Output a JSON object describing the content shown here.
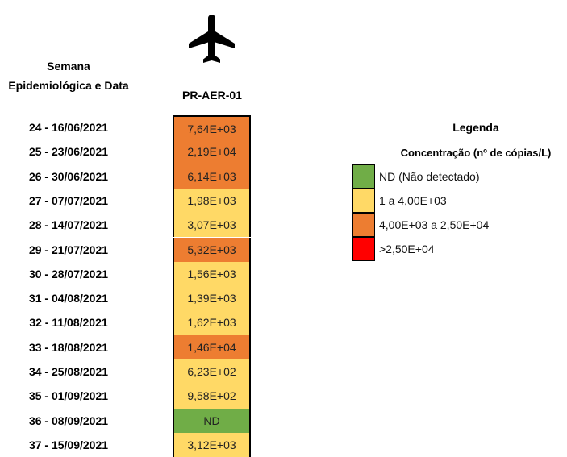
{
  "header": {
    "row_label": "Semana Epidemiológica e Data",
    "column_label": "PR-AER-01"
  },
  "table": {
    "rows": [
      {
        "week": "24 - 16/06/2021",
        "value": "7,64E+03",
        "color": "#ed7d31"
      },
      {
        "week": "25 - 23/06/2021",
        "value": "2,19E+04",
        "color": "#ed7d31"
      },
      {
        "week": "26 - 30/06/2021",
        "value": "6,14E+03",
        "color": "#ed7d31"
      },
      {
        "week": "27 - 07/07/2021",
        "value": "1,98E+03",
        "color": "#ffd966"
      },
      {
        "week": "28 - 14/07/2021",
        "value": "3,07E+03",
        "color": "#ffd966"
      },
      {
        "week": "29 - 21/07/2021",
        "value": "5,32E+03",
        "color": "#ed7d31"
      },
      {
        "week": "30 - 28/07/2021",
        "value": "1,56E+03",
        "color": "#ffd966"
      },
      {
        "week": "31 - 04/08/2021",
        "value": "1,39E+03",
        "color": "#ffd966"
      },
      {
        "week": "32 - 11/08/2021",
        "value": "1,62E+03",
        "color": "#ffd966"
      },
      {
        "week": "33 - 18/08/2021",
        "value": "1,46E+04",
        "color": "#ed7d31"
      },
      {
        "week": "34 - 25/08/2021",
        "value": "6,23E+02",
        "color": "#ffd966"
      },
      {
        "week": "35 - 01/09/2021",
        "value": "9,58E+02",
        "color": "#ffd966"
      },
      {
        "week": "36 - 08/09/2021",
        "value": "ND",
        "color": "#70ad47"
      },
      {
        "week": "37 - 15/09/2021",
        "value": "3,12E+03",
        "color": "#ffd966"
      }
    ]
  },
  "legend": {
    "title": "Legenda",
    "subtitle": "Concentração (nº de cópias/L)",
    "items": [
      {
        "label": "ND (Não detectado)",
        "color": "#70ad47"
      },
      {
        "label": "1 a 4,00E+03",
        "color": "#ffd966"
      },
      {
        "label": "4,00E+03 a 2,50E+04",
        "color": "#ed7d31"
      },
      {
        "label": ">2,50E+04",
        "color": "#ff0000"
      }
    ]
  }
}
